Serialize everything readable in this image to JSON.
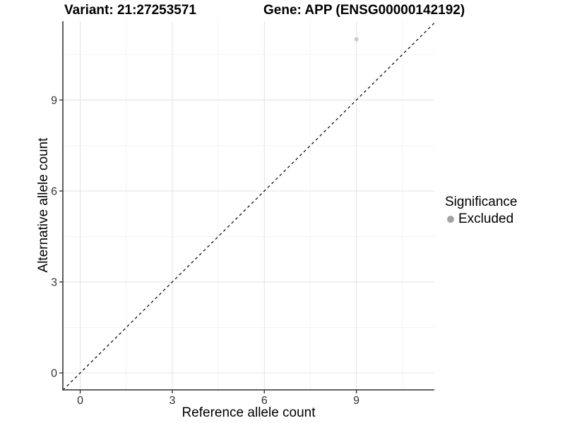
{
  "titles": {
    "variant": "Variant: 21:27253571",
    "gene": "Gene: APP (ENSG00000142192)"
  },
  "legend": {
    "title": "Significance",
    "items": [
      {
        "label": "Excluded",
        "key_color": "#a3a3a3"
      }
    ]
  },
  "chart_data": {
    "type": "scatter",
    "title": "Variant: 21:27253571 | Gene: APP (ENSG00000142192)",
    "xlabel": "Reference allele count",
    "ylabel": "Alternative allele count",
    "xlim": [
      -0.566,
      11.54
    ],
    "ylim": [
      -0.558,
      11.6
    ],
    "x_ticks": [
      0,
      3,
      6,
      9
    ],
    "y_ticks": [
      0,
      3,
      6,
      9
    ],
    "x_minor_ticks": [
      1.5,
      4.5,
      7.5,
      10.5
    ],
    "y_minor_ticks": [
      1.5,
      4.5,
      7.5,
      10.5
    ],
    "grid": true,
    "series": [
      {
        "name": "Excluded",
        "points": [
          {
            "x": 9,
            "y": 11
          }
        ],
        "point_color": "#c9c9c9",
        "point_radius": 3
      }
    ],
    "reference_line": {
      "kind": "identity",
      "slope": 1,
      "intercept": 0,
      "style": "dashed",
      "color": "#111111"
    },
    "legend_position": "right",
    "colors": {
      "major_grid": "#e4e4e4",
      "minor_grid": "#f1f1f1",
      "axis_line": "#4d4d4d",
      "tick_mark": "#333333",
      "tick_label": "#333333",
      "panel_background": "#ffffff"
    }
  }
}
